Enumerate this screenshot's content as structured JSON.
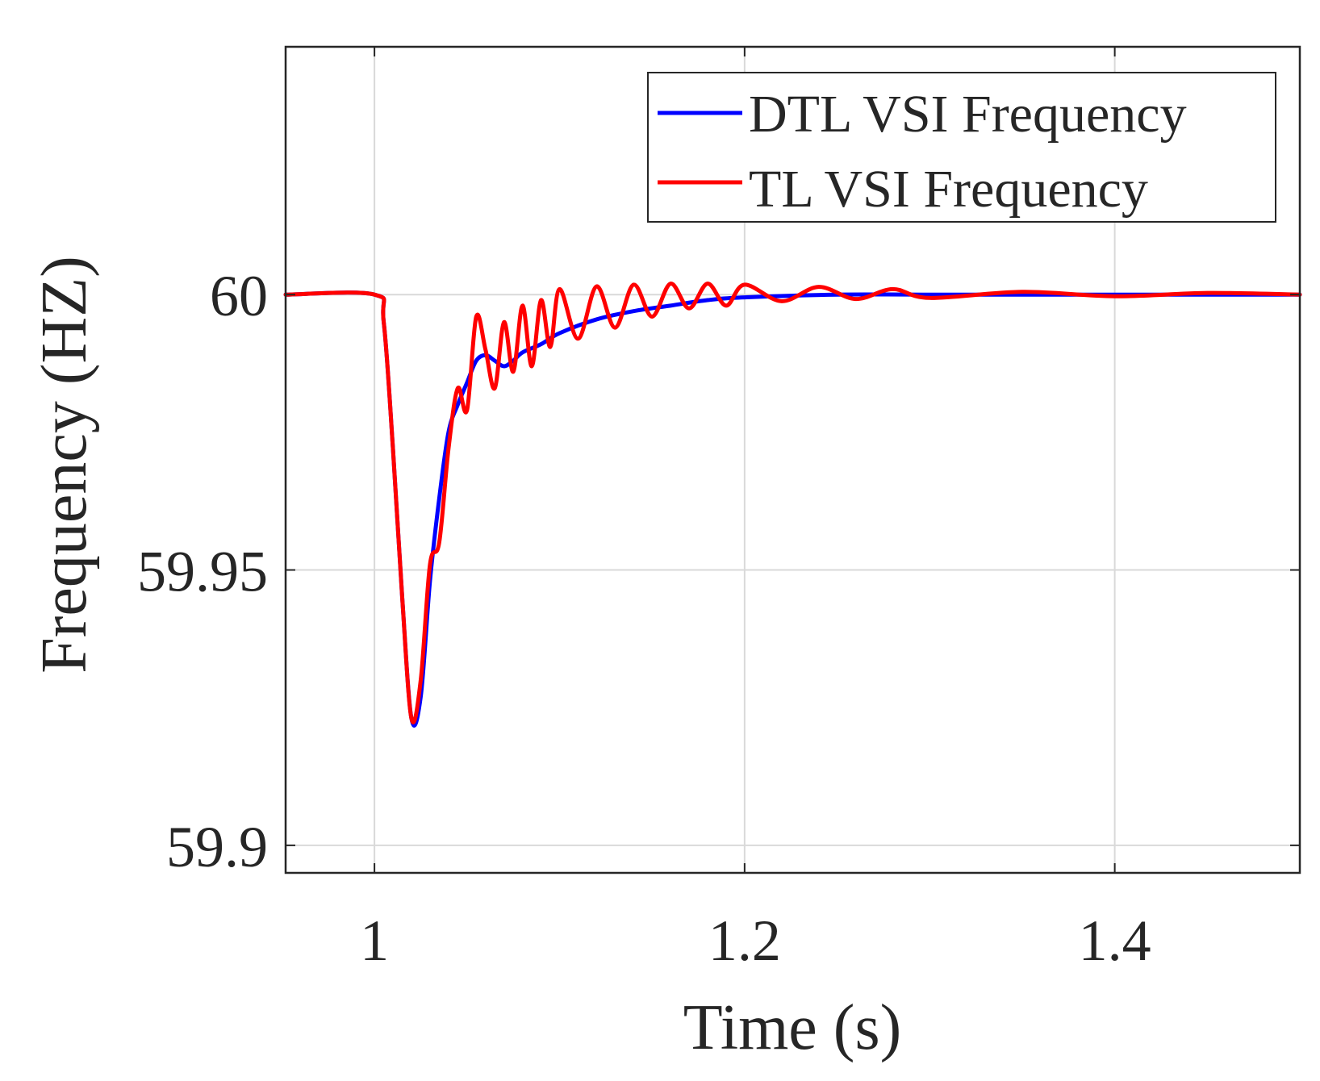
{
  "chart_data": {
    "type": "line",
    "title": "",
    "xlabel": "Time (s)",
    "ylabel": "Frequency (HZ)",
    "xlim": [
      0.952,
      1.5
    ],
    "ylim": [
      59.895,
      60.045
    ],
    "x_ticks": [
      1,
      1.2,
      1.4
    ],
    "x_tick_labels": [
      "1",
      "1.2",
      "1.4"
    ],
    "y_ticks": [
      59.9,
      59.95,
      60
    ],
    "y_tick_labels": [
      "59.9",
      "59.95",
      "60"
    ],
    "grid": true,
    "legend_position": "top-right",
    "series": [
      {
        "name": "DTL VSI Frequency",
        "color": "#0000ff",
        "x": [
          0.952,
          1.0,
          1.005,
          1.01,
          1.015,
          1.02,
          1.025,
          1.03,
          1.035,
          1.04,
          1.045,
          1.05,
          1.055,
          1.06,
          1.065,
          1.07,
          1.075,
          1.08,
          1.09,
          1.1,
          1.12,
          1.14,
          1.16,
          1.18,
          1.2,
          1.25,
          1.3,
          1.4,
          1.5
        ],
        "y": [
          60.0,
          60.0,
          59.995,
          59.972,
          59.945,
          59.923,
          59.927,
          59.948,
          59.963,
          59.975,
          59.98,
          59.984,
          59.988,
          59.989,
          59.988,
          59.987,
          59.988,
          59.9895,
          59.991,
          59.993,
          59.9955,
          59.997,
          59.998,
          59.999,
          59.9995,
          60.0,
          60.0,
          60.0,
          60.0
        ]
      },
      {
        "name": "TL VSI Frequency",
        "color": "#ff0000",
        "x": [
          0.952,
          1.0,
          1.005,
          1.01,
          1.015,
          1.02,
          1.025,
          1.03,
          1.035,
          1.04,
          1.045,
          1.05,
          1.055,
          1.06,
          1.065,
          1.07,
          1.075,
          1.08,
          1.085,
          1.09,
          1.095,
          1.1,
          1.11,
          1.12,
          1.13,
          1.14,
          1.15,
          1.16,
          1.17,
          1.18,
          1.19,
          1.2,
          1.22,
          1.24,
          1.26,
          1.28,
          1.3,
          1.35,
          1.4,
          1.45,
          1.5
        ],
        "y": [
          60.0,
          60.0,
          59.995,
          59.972,
          59.945,
          59.923,
          59.93,
          59.951,
          59.955,
          59.972,
          59.983,
          59.979,
          59.996,
          59.99,
          59.983,
          59.995,
          59.986,
          59.998,
          59.987,
          59.999,
          59.9905,
          60.001,
          59.992,
          60.0015,
          59.994,
          60.0018,
          59.996,
          60.002,
          59.9975,
          60.002,
          59.998,
          60.0018,
          59.9988,
          60.0014,
          59.9992,
          60.001,
          59.9994,
          60.0005,
          59.9997,
          60.0003,
          60.0
        ]
      }
    ]
  }
}
